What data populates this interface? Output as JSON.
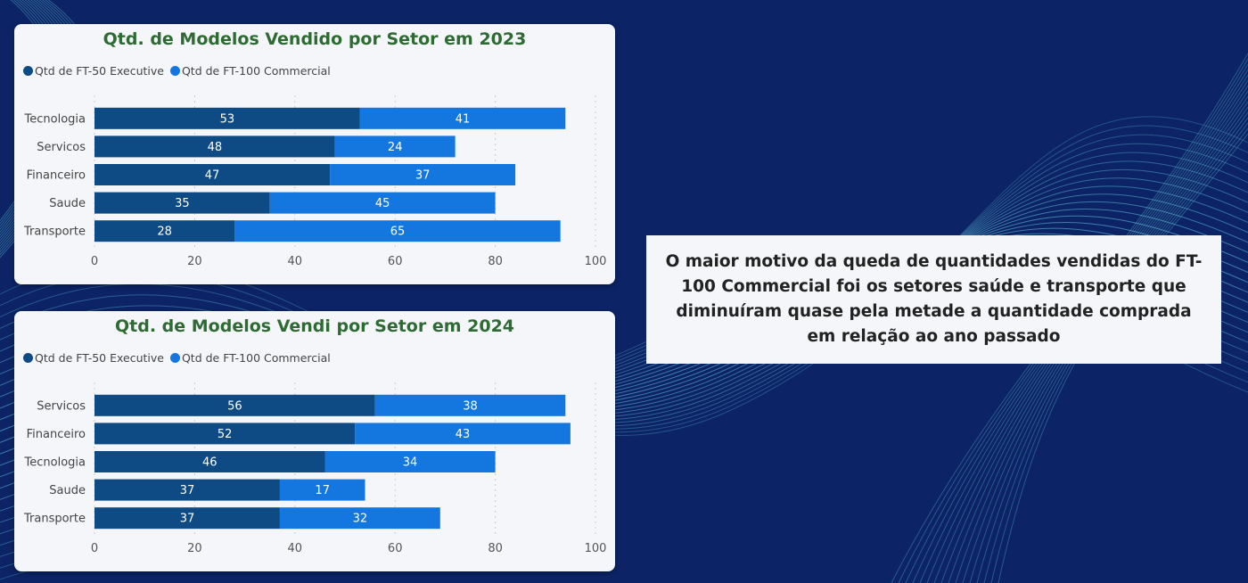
{
  "colors": {
    "background": "#0c2466",
    "card": "#f4f6f9",
    "title": "#2e6b33",
    "ft50": "#0e4a83",
    "ft100": "#1477e0",
    "wave": "#6cd6e6"
  },
  "note": {
    "text": "O maior motivo da queda de quantidades vendidas do FT-100 Commercial foi os setores saúde e transporte que diminuíram quase pela metade a quantidade comprada em relação ao ano passado"
  },
  "chart_data": [
    {
      "type": "bar",
      "orientation": "horizontal",
      "stacked": true,
      "title": "Qtd. de Modelos Vendido por Setor em 2023",
      "legend_position": "top-left",
      "grid": true,
      "categories": [
        "Tecnologia",
        "Servicos",
        "Financeiro",
        "Saude",
        "Transporte"
      ],
      "series": [
        {
          "name": "Qtd de FT-50 Executive",
          "values": [
            53,
            48,
            47,
            35,
            28
          ]
        },
        {
          "name": "Qtd de FT-100 Commercial",
          "values": [
            41,
            24,
            37,
            45,
            65
          ]
        }
      ],
      "xlim": [
        0,
        100
      ],
      "xticks": [
        0,
        20,
        40,
        60,
        80,
        100
      ]
    },
    {
      "type": "bar",
      "orientation": "horizontal",
      "stacked": true,
      "title": "Qtd. de Modelos Vendi por Setor em 2024",
      "legend_position": "top-left",
      "grid": true,
      "categories": [
        "Servicos",
        "Financeiro",
        "Tecnologia",
        "Saude",
        "Transporte"
      ],
      "series": [
        {
          "name": "Qtd de FT-50 Executive",
          "values": [
            56,
            52,
            46,
            37,
            37
          ]
        },
        {
          "name": "Qtd de FT-100 Commercial",
          "values": [
            38,
            43,
            34,
            17,
            32
          ]
        }
      ],
      "xlim": [
        0,
        100
      ],
      "xticks": [
        0,
        20,
        40,
        60,
        80,
        100
      ]
    }
  ]
}
